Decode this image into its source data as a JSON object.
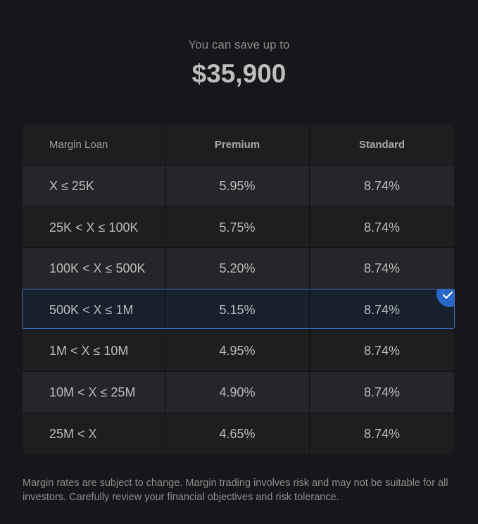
{
  "header": {
    "subtitle": "You can save up to",
    "amount": "$35,900"
  },
  "table": {
    "columns": [
      "Margin Loan",
      "Premium",
      "Standard"
    ],
    "rows": [
      {
        "range": "X ≤ 25K",
        "premium": "5.95%",
        "standard": "8.74%"
      },
      {
        "range": "25K < X ≤ 100K",
        "premium": "5.75%",
        "standard": "8.74%"
      },
      {
        "range": "100K < X ≤ 500K",
        "premium": "5.20%",
        "standard": "8.74%"
      },
      {
        "range": "500K < X ≤ 1M",
        "premium": "5.15%",
        "standard": "8.74%",
        "selected": true
      },
      {
        "range": "1M < X ≤ 10M",
        "premium": "4.95%",
        "standard": "8.74%"
      },
      {
        "range": "10M < X ≤ 25M",
        "premium": "4.90%",
        "standard": "8.74%"
      },
      {
        "range": "25M < X",
        "premium": "4.65%",
        "standard": "8.74%"
      }
    ],
    "selected_icon": "checkmark-icon",
    "selected_color": "#2a66c8"
  },
  "disclaimer": "Margin rates are subject to change. Margin trading involves risk and may not be suitable for all investors. Carefully review your financial objectives and risk tolerance."
}
